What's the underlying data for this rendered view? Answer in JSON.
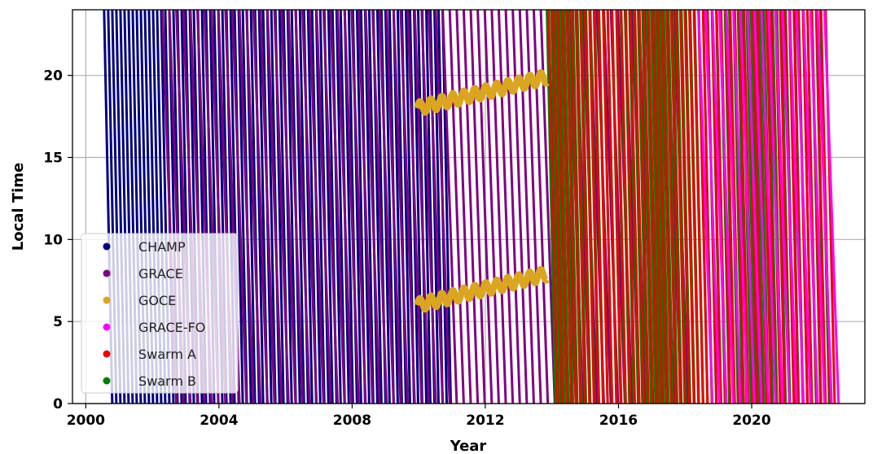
{
  "chart_data": {
    "type": "scatter",
    "title": "",
    "xlabel": "Year",
    "ylabel": "Local Time",
    "xlim": [
      1999.6,
      2023.4
    ],
    "ylim": [
      0,
      24
    ],
    "xticks": [
      2000,
      2004,
      2008,
      2012,
      2016,
      2020
    ],
    "yticks": [
      0,
      5,
      10,
      15,
      20
    ],
    "grid": true,
    "legend_position": "lower-left",
    "series": [
      {
        "name": "CHAMP",
        "color": "#000080",
        "x_start": 2000.55,
        "x_end": 2010.75,
        "drift_hours_per_year": -98,
        "phase_spacing_years": 0.1225
      },
      {
        "name": "GRACE",
        "color": "#800080",
        "x_start": 2002.3,
        "x_end": 2017.75,
        "drift_hours_per_year": -57,
        "phase_spacing_years": 0.2105
      },
      {
        "name": "GOCE",
        "color": "#DAA520",
        "x_start": 2009.95,
        "x_end": 2013.85,
        "bands": [
          {
            "x": [
              2009.95,
              2013.85
            ],
            "y": [
              18.0,
              19.9
            ]
          },
          {
            "x": [
              2009.95,
              2013.85
            ],
            "y": [
              6.0,
              7.9
            ]
          }
        ]
      },
      {
        "name": "GRACE-FO",
        "color": "#FF00FF",
        "x_start": 2018.4,
        "x_end": 2022.25,
        "drift_hours_per_year": -57,
        "phase_spacing_years": 0.2105
      },
      {
        "name": "Swarm A",
        "color": "#EE0000",
        "x_start": 2013.9,
        "x_end": 2022.3,
        "drift_hours_per_year": -88,
        "phase_spacing_years": 0.1364
      },
      {
        "name": "Swarm B",
        "color": "#008000",
        "x_start": 2013.85,
        "x_end": 2022.1,
        "drift_hours_per_year": -92,
        "phase_spacing_years": 0.1304
      }
    ]
  }
}
